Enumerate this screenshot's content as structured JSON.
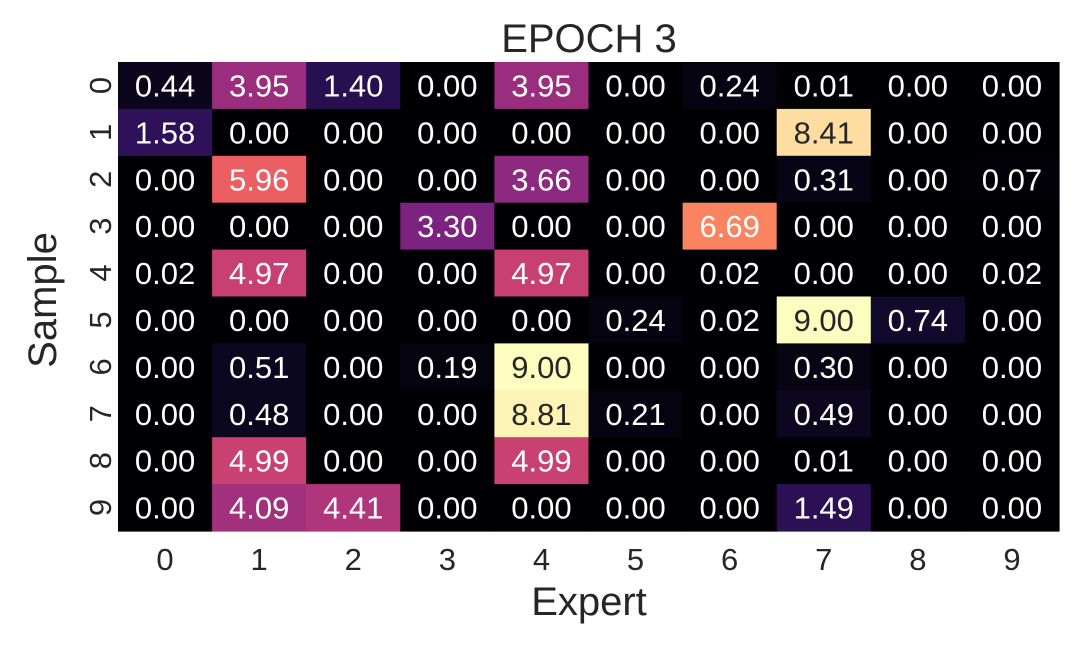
{
  "chart_data": {
    "type": "heatmap",
    "title": "EPOCH 3",
    "xlabel": "Expert",
    "ylabel": "Sample",
    "x_categories": [
      "0",
      "1",
      "2",
      "3",
      "4",
      "5",
      "6",
      "7",
      "8",
      "9"
    ],
    "y_categories": [
      "0",
      "1",
      "2",
      "3",
      "4",
      "5",
      "6",
      "7",
      "8",
      "9"
    ],
    "values": [
      [
        0.44,
        3.95,
        1.4,
        0.0,
        3.95,
        0.0,
        0.24,
        0.01,
        0.0,
        0.0
      ],
      [
        1.58,
        0.0,
        0.0,
        0.0,
        0.0,
        0.0,
        0.0,
        8.41,
        0.0,
        0.0
      ],
      [
        0.0,
        5.96,
        0.0,
        0.0,
        3.66,
        0.0,
        0.0,
        0.31,
        0.0,
        0.07
      ],
      [
        0.0,
        0.0,
        0.0,
        3.3,
        0.0,
        0.0,
        6.69,
        0.0,
        0.0,
        0.0
      ],
      [
        0.02,
        4.97,
        0.0,
        0.0,
        4.97,
        0.0,
        0.02,
        0.0,
        0.0,
        0.02
      ],
      [
        0.0,
        0.0,
        0.0,
        0.0,
        0.0,
        0.24,
        0.02,
        9.0,
        0.74,
        0.0
      ],
      [
        0.0,
        0.51,
        0.0,
        0.19,
        9.0,
        0.0,
        0.0,
        0.3,
        0.0,
        0.0
      ],
      [
        0.0,
        0.48,
        0.0,
        0.0,
        8.81,
        0.21,
        0.0,
        0.49,
        0.0,
        0.0
      ],
      [
        0.0,
        4.99,
        0.0,
        0.0,
        4.99,
        0.0,
        0.0,
        0.01,
        0.0,
        0.0
      ],
      [
        0.0,
        4.09,
        4.41,
        0.0,
        0.0,
        0.0,
        0.0,
        1.49,
        0.0,
        0.0
      ]
    ],
    "value_range": [
      0,
      9
    ],
    "colormap": "magma",
    "colorbar": false,
    "grid": false,
    "annotations": true,
    "annotation_format": "0.00"
  }
}
